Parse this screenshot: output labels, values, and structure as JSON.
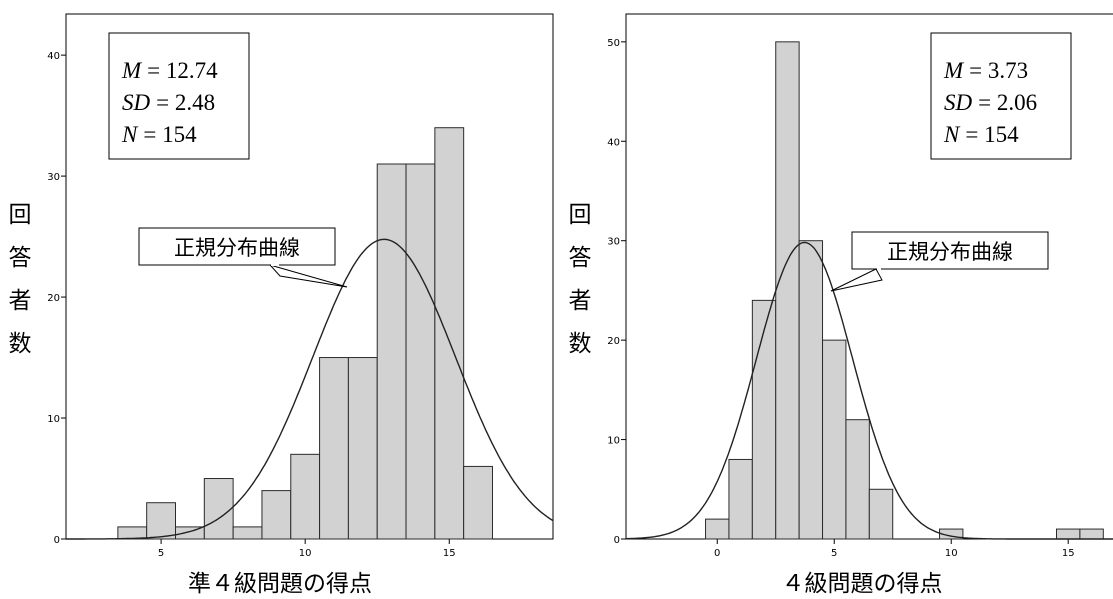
{
  "chart_data": [
    {
      "type": "bar",
      "xlabel": "準４級問題の得点",
      "ylabel_chars": [
        "回",
        "答",
        "者",
        "数"
      ],
      "bin_starts": [
        3.5,
        4.5,
        5.5,
        6.5,
        7.5,
        8.5,
        9.5,
        10.5,
        11.5,
        12.5,
        13.5,
        14.5,
        15.5
      ],
      "bin_width": 1,
      "values": [
        1,
        3,
        1,
        5,
        1,
        4,
        7,
        15,
        15,
        31,
        31,
        34,
        6
      ],
      "xlim": [
        1.7,
        18.6
      ],
      "ylim": [
        0,
        43.4
      ],
      "xticks": [
        5,
        10,
        15
      ],
      "yticks": [
        0,
        10,
        20,
        30,
        40
      ],
      "normal_curve": {
        "mean": 12.74,
        "sd": 2.48,
        "n": 154,
        "label": "正規分布曲線"
      },
      "stats": [
        {
          "symbol": "M",
          "value": "= 12.74"
        },
        {
          "symbol": "SD",
          "value": "= 2.48"
        },
        {
          "symbol": "N",
          "value": "= 154"
        }
      ]
    },
    {
      "type": "bar",
      "xlabel": "４級問題の得点",
      "ylabel_chars": [
        "回",
        "答",
        "者",
        "数"
      ],
      "bin_starts": [
        -0.5,
        0.5,
        1.5,
        2.5,
        3.5,
        4.5,
        5.5,
        6.5,
        9.5,
        14.5,
        15.5
      ],
      "bin_width": 1,
      "values": [
        2,
        8,
        24,
        50,
        30,
        20,
        12,
        5,
        1,
        1,
        1
      ],
      "xlim": [
        -3.9,
        17.0
      ],
      "ylim": [
        0,
        52.8
      ],
      "xticks": [
        0,
        5,
        10,
        15
      ],
      "yticks": [
        0,
        10,
        20,
        30,
        40,
        50
      ],
      "normal_curve": {
        "mean": 3.73,
        "sd": 2.06,
        "n": 154,
        "label": "正規分布曲線"
      },
      "stats": [
        {
          "symbol": "M",
          "value": "= 3.73"
        },
        {
          "symbol": "SD",
          "value": "= 2.06"
        },
        {
          "symbol": "N",
          "value": "= 154"
        }
      ]
    }
  ]
}
